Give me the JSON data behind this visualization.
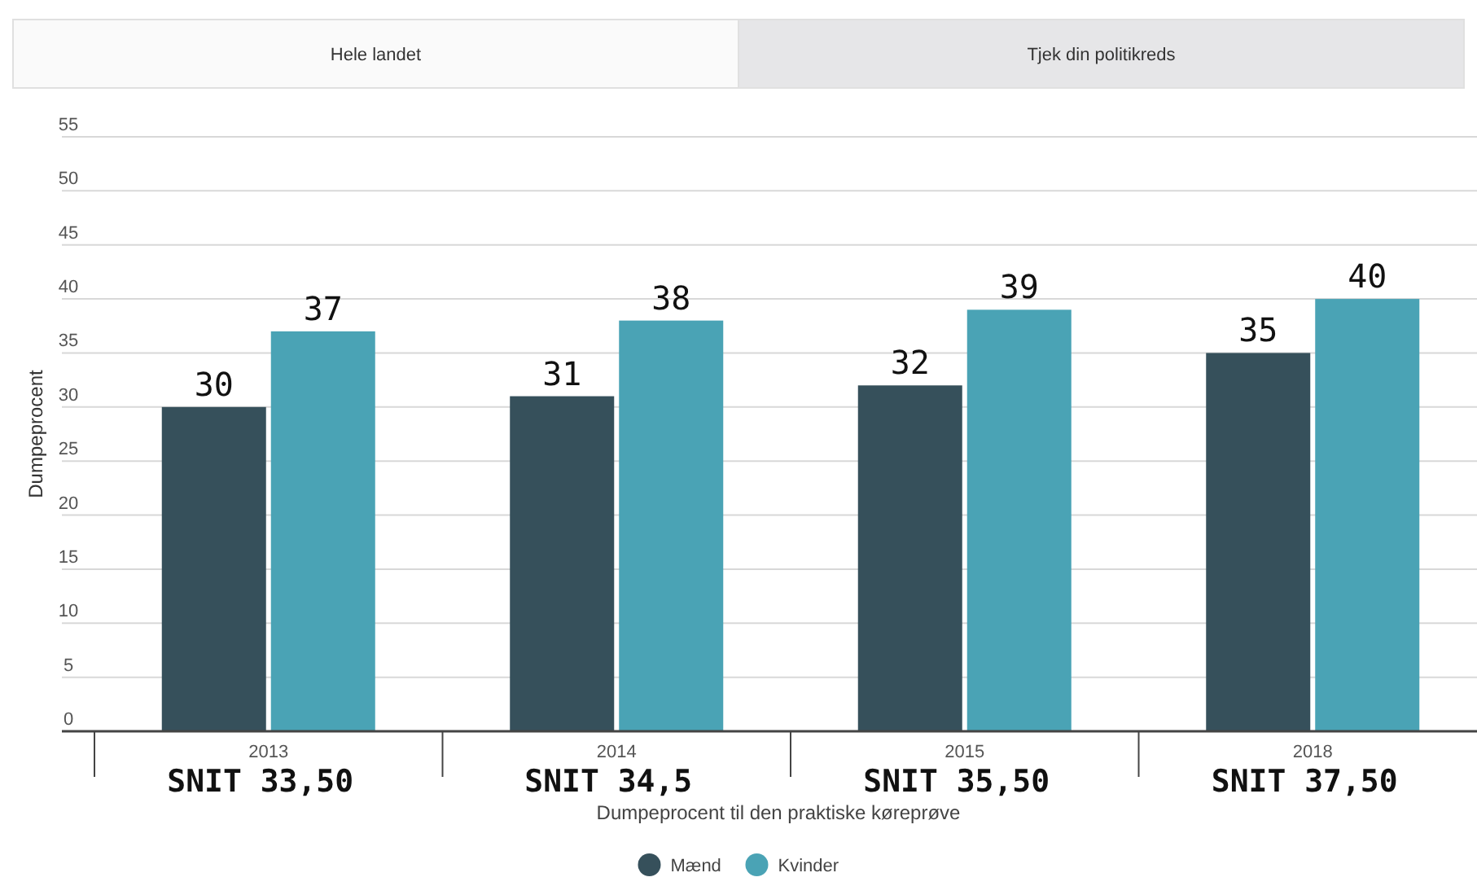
{
  "chart_data": {
    "type": "bar",
    "xlabel": "Dumpeprocent til den praktiske køreprøve",
    "ylabel": "Dumpeprocent",
    "categories": [
      "2013",
      "2014",
      "2015",
      "2018"
    ],
    "series": [
      {
        "name": "Mænd",
        "color": "#36505b",
        "values": [
          30,
          31,
          32,
          35
        ],
        "value_labels": [
          "30",
          "31",
          "32",
          "35"
        ]
      },
      {
        "name": "Kvinder",
        "color": "#4aa3b5",
        "values": [
          37,
          38,
          39,
          40
        ],
        "value_labels": [
          "37",
          "38",
          "39",
          "40"
        ]
      }
    ],
    "ylim": [
      0,
      55
    ],
    "yticks": [
      0,
      5,
      10,
      15,
      20,
      25,
      30,
      35,
      40,
      45,
      50,
      55
    ],
    "grid": "y",
    "legend": "bottom",
    "annotations": [
      "Hele landet",
      "Tjek din politikreds",
      "SNIT 33,50",
      "SNIT 34,5",
      "SNIT 35,50",
      "SNIT 37,50"
    ]
  }
}
